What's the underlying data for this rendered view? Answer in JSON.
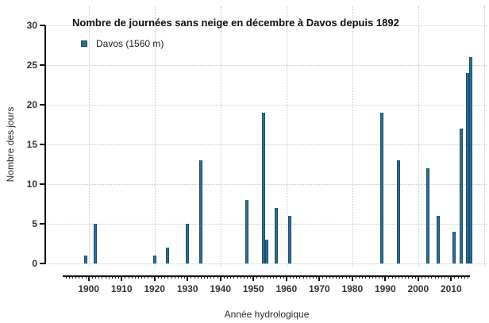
{
  "title": "Nombre de journées sans neige en décembre à Davos depuis 1892",
  "legend": {
    "label": "Davos (1560 m)"
  },
  "colors": {
    "bar_fill": "#2e6e93",
    "bar_edge": "#1b4c6b",
    "grid": "#c9c9c9",
    "axis": "#111111",
    "tick_label": "#333333"
  },
  "chart_data": {
    "type": "bar",
    "title": "Nombre de journées sans neige en décembre à Davos depuis 1892",
    "xlabel": "Année hydrologique",
    "ylabel": "Nombre des jours",
    "legend_position": "top-left",
    "grid": "dotted",
    "xlim": [
      1892,
      2016
    ],
    "ylim": [
      0,
      30
    ],
    "y_ticks": [
      0,
      5,
      10,
      15,
      20,
      25,
      30
    ],
    "x_ticks_major": [
      1900,
      1910,
      1920,
      1930,
      1940,
      1950,
      1960,
      1970,
      1980,
      1990,
      2000,
      2010
    ],
    "x_minor_tick_step": 1,
    "grid_x_years": [
      1900,
      1920,
      1940,
      1960,
      1980,
      2000,
      2020
    ],
    "series": [
      {
        "name": "Davos (1560 m)",
        "points": [
          {
            "year": 1899,
            "value": 1
          },
          {
            "year": 1902,
            "value": 5
          },
          {
            "year": 1920,
            "value": 1
          },
          {
            "year": 1924,
            "value": 2
          },
          {
            "year": 1930,
            "value": 5
          },
          {
            "year": 1934,
            "value": 13
          },
          {
            "year": 1948,
            "value": 8
          },
          {
            "year": 1953,
            "value": 19
          },
          {
            "year": 1954,
            "value": 3
          },
          {
            "year": 1957,
            "value": 7
          },
          {
            "year": 1961,
            "value": 6
          },
          {
            "year": 1989,
            "value": 19
          },
          {
            "year": 1994,
            "value": 13
          },
          {
            "year": 2003,
            "value": 12
          },
          {
            "year": 2006,
            "value": 6
          },
          {
            "year": 2011,
            "value": 4
          },
          {
            "year": 2013,
            "value": 17
          },
          {
            "year": 2015,
            "value": 24
          },
          {
            "year": 2016,
            "value": 26
          }
        ]
      }
    ]
  }
}
